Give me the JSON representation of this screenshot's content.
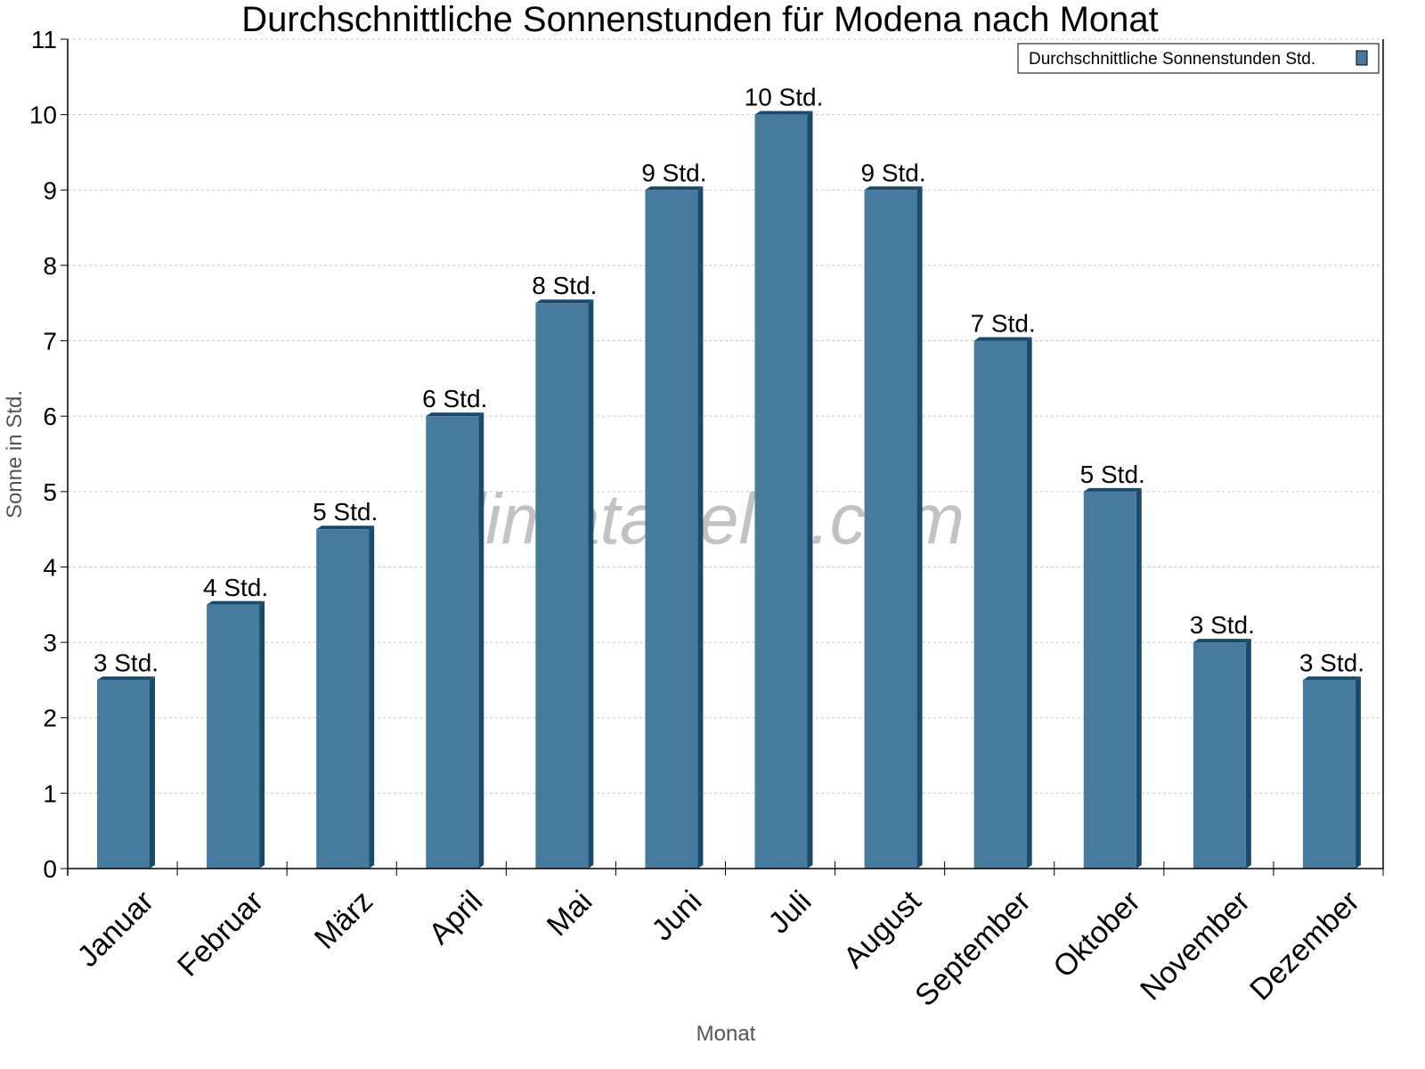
{
  "chart_data": {
    "type": "bar",
    "title": "Durchschnittliche Sonnenstunden für Modena nach Monat",
    "xlabel": "Monat",
    "ylabel": "Sonne in Std.",
    "ylim": [
      0,
      11
    ],
    "yticks": [
      "0",
      "1",
      "2",
      "3",
      "4",
      "5",
      "6",
      "7",
      "8",
      "9",
      "10",
      "11"
    ],
    "grid": true,
    "legend_position": "top-right",
    "categories": [
      "Januar",
      "Februar",
      "März",
      "April",
      "Mai",
      "Juni",
      "Juli",
      "August",
      "September",
      "Oktober",
      "November",
      "Dezember"
    ],
    "series": [
      {
        "name": "Durchschnittliche Sonnenstunden Std.",
        "values": [
          2.5,
          3.5,
          4.5,
          6,
          7.5,
          9,
          10,
          9,
          7,
          5,
          3,
          2.5
        ],
        "labels": [
          "3 Std.",
          "4 Std.",
          "5 Std.",
          "6 Std.",
          "8 Std.",
          "9 Std.",
          "10 Std.",
          "9 Std.",
          "7 Std.",
          "5 Std.",
          "3 Std.",
          "3 Std."
        ],
        "color": "#467b9d",
        "side_color": "#1a4a6b"
      }
    ]
  },
  "watermark": "klimatabelle.com"
}
